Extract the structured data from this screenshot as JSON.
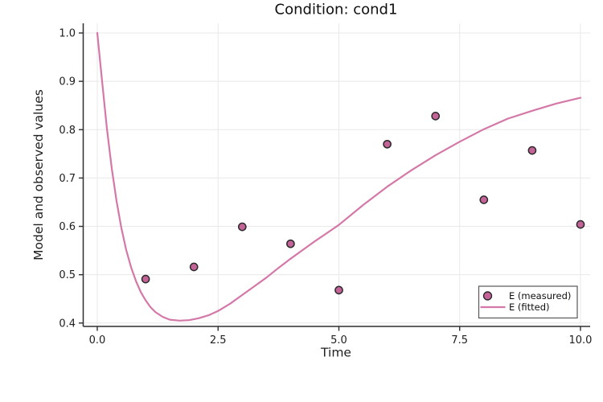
{
  "title": "Condition: cond1",
  "colors": {
    "background": "#ffffff",
    "accent_line": "#d478a8",
    "marker_fill": "#c46398",
    "marker_stroke": "#2a2a2a",
    "grid": "#e8e8e8",
    "axis": "#2e2e33",
    "tick_label": "#202020",
    "title_text": "#0f0f0f",
    "legend_border": "#58585b",
    "legend_bg": "#ffffff"
  },
  "legend": {
    "position": "bottom-right",
    "items": [
      {
        "label": "E (measured)",
        "glyph": "circle-marker"
      },
      {
        "label": "E (fitted)",
        "glyph": "line-sample"
      }
    ]
  },
  "chart_data": {
    "type": "scatter+line",
    "title": "Condition: cond1",
    "xlabel": "Time",
    "ylabel": "Model and observed values",
    "xlim": [
      -0.291,
      10.2
    ],
    "ylim": [
      0.393,
      1.02
    ],
    "xticks": [
      0.0,
      2.5,
      5.0,
      7.5,
      10.0
    ],
    "xtick_labels": [
      "0.0",
      "2.5",
      "5.0",
      "7.5",
      "10.0"
    ],
    "yticks": [
      0.4,
      0.5,
      0.6,
      0.7,
      0.8,
      0.9,
      1.0
    ],
    "ytick_labels": [
      "0.4",
      "0.5",
      "0.6",
      "0.7",
      "0.8",
      "0.9",
      "1.0"
    ],
    "grid": true,
    "legend_position": "bottom-right",
    "series": [
      {
        "name": "E (measured)",
        "type": "scatter",
        "x": [
          1,
          2,
          3,
          4,
          5,
          6,
          7,
          8,
          9,
          10
        ],
        "y": [
          0.491,
          0.516,
          0.599,
          0.564,
          0.468,
          0.77,
          0.828,
          0.655,
          0.757,
          0.604
        ]
      },
      {
        "name": "E (fitted)",
        "type": "line",
        "x": [
          0,
          0.1,
          0.2,
          0.3,
          0.4,
          0.5,
          0.6,
          0.7,
          0.8,
          0.9,
          1.0,
          1.1,
          1.2,
          1.35,
          1.5,
          1.7,
          1.9,
          2.1,
          2.3,
          2.5,
          2.75,
          3.0,
          3.25,
          3.5,
          3.75,
          4.0,
          4.25,
          4.5,
          4.75,
          5.0,
          5.5,
          6.0,
          6.5,
          7.0,
          7.5,
          8.0,
          8.5,
          9.0,
          9.5,
          10.0
        ],
        "y": [
          1.0,
          0.9,
          0.802,
          0.72,
          0.652,
          0.596,
          0.551,
          0.515,
          0.487,
          0.464,
          0.447,
          0.433,
          0.423,
          0.413,
          0.407,
          0.405,
          0.406,
          0.41,
          0.416,
          0.425,
          0.44,
          0.458,
          0.476,
          0.494,
          0.514,
          0.533,
          0.551,
          0.569,
          0.586,
          0.603,
          0.644,
          0.682,
          0.716,
          0.747,
          0.775,
          0.801,
          0.823,
          0.839,
          0.854,
          0.866
        ]
      }
    ]
  }
}
